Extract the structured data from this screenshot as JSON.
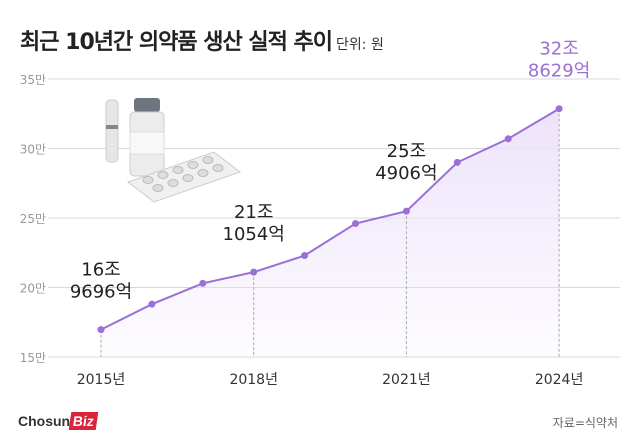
{
  "title": "최근 10년간 의약품 생산 실적 추이",
  "unit": "단위: 원",
  "source": "자료=식약처",
  "logo": {
    "text": "Chosun",
    "highlight": "Biz"
  },
  "colors": {
    "line": "#9b6fd8",
    "area": "#ede3fa",
    "grid": "#d8d8d8",
    "brand": "#d9243a"
  },
  "chart_data": {
    "type": "line",
    "title": "최근 10년간 의약품 생산 실적 추이",
    "ylabel": "",
    "xlabel": "",
    "ylim": [
      15,
      35
    ],
    "y_ticks": [
      15,
      20,
      25,
      30,
      35
    ],
    "y_tick_labels": [
      "15만",
      "20만",
      "25만",
      "30만",
      "35만"
    ],
    "x": [
      2015,
      2016,
      2017,
      2018,
      2019,
      2020,
      2021,
      2022,
      2023,
      2024
    ],
    "x_tick_labels": [
      {
        "year": 2015,
        "label": "2015년"
      },
      {
        "year": 2018,
        "label": "2018년"
      },
      {
        "year": 2021,
        "label": "2021년"
      },
      {
        "year": 2024,
        "label": "2024년"
      }
    ],
    "values": [
      16.9696,
      18.8,
      20.3,
      21.1054,
      22.3,
      24.6,
      25.4906,
      29.0,
      30.7,
      32.8629
    ],
    "grid": true,
    "fill": "area",
    "annotations": [
      {
        "year": 2015,
        "line1": "16조",
        "line2": "9696억"
      },
      {
        "year": 2018,
        "line1": "21조",
        "line2": "1054억"
      },
      {
        "year": 2021,
        "line1": "25조",
        "line2": "4906억"
      },
      {
        "year": 2024,
        "line1": "32조",
        "line2": "8629억",
        "highlight": true
      }
    ]
  }
}
